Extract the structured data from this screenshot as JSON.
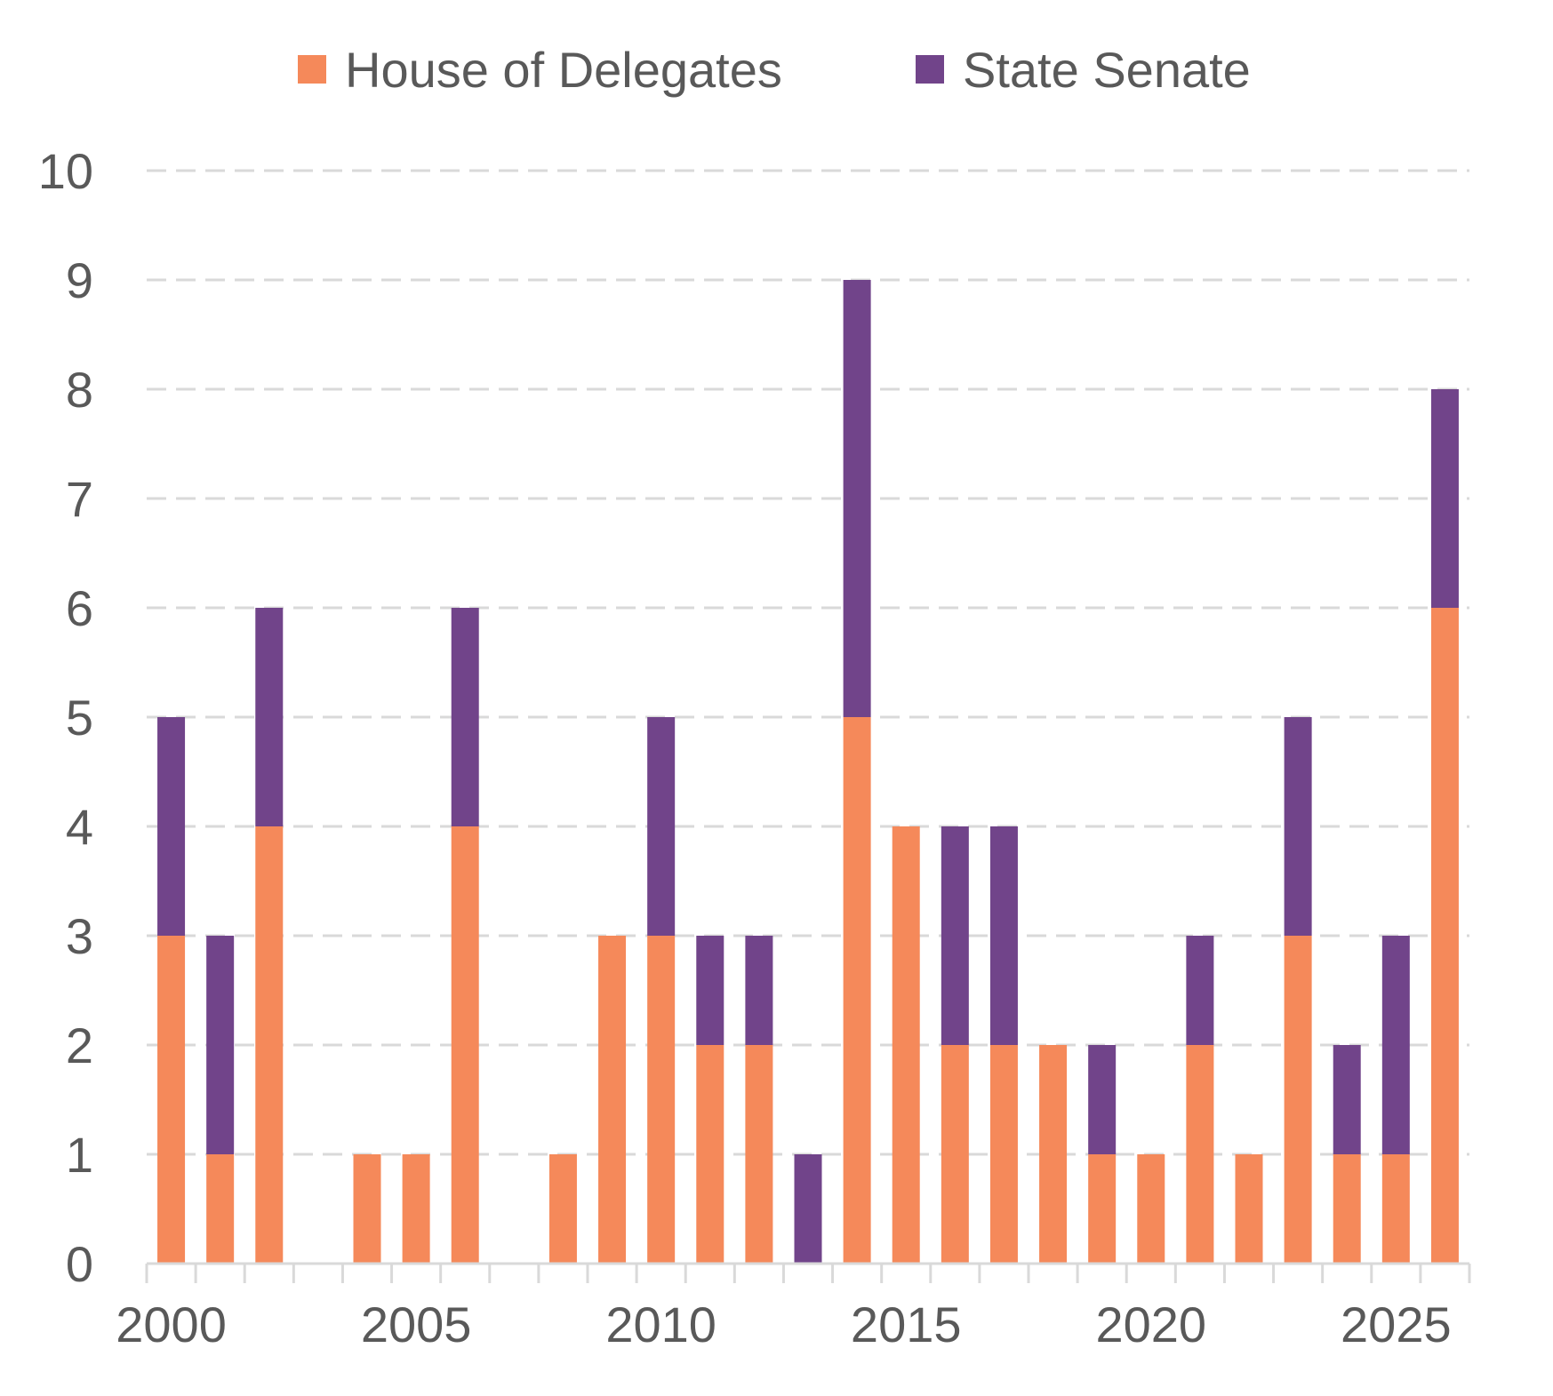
{
  "chart_data": {
    "type": "bar",
    "stacked": true,
    "title": "",
    "xlabel": "",
    "ylabel": "",
    "ylim": [
      0,
      10
    ],
    "yticks": [
      "0",
      "1",
      "2",
      "3",
      "4",
      "5",
      "6",
      "7",
      "8",
      "9",
      "10"
    ],
    "xtick_labels": [
      "2000",
      "2005",
      "2010",
      "2015",
      "2020",
      "2025"
    ],
    "grid": "horizontal dashed",
    "legend_position": "top",
    "categories": [
      2000,
      2001,
      2002,
      2003,
      2004,
      2005,
      2006,
      2007,
      2008,
      2009,
      2010,
      2011,
      2012,
      2013,
      2014,
      2015,
      2016,
      2017,
      2018,
      2019,
      2020,
      2021,
      2022,
      2023,
      2024,
      2025,
      2026
    ],
    "series": [
      {
        "name": "House of Delegates",
        "color": "#F5895A",
        "values": [
          3,
          1,
          4,
          0,
          1,
          1,
          4,
          0,
          1,
          3,
          3,
          2,
          2,
          0,
          5,
          4,
          2,
          2,
          2,
          1,
          1,
          2,
          1,
          3,
          1,
          1,
          6
        ]
      },
      {
        "name": "State Senate",
        "color": "#71448A",
        "values": [
          2,
          2,
          2,
          0,
          0,
          0,
          2,
          0,
          0,
          0,
          2,
          1,
          1,
          1,
          4,
          0,
          2,
          2,
          0,
          1,
          0,
          1,
          0,
          2,
          1,
          2,
          2
        ]
      }
    ]
  }
}
